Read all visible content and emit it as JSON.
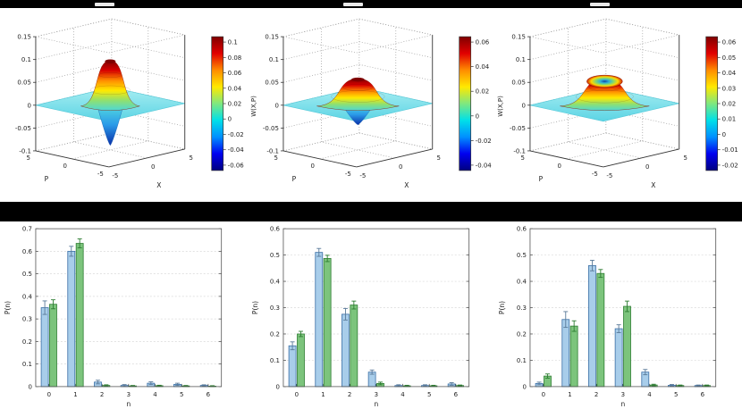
{
  "page": {
    "background": "#000000",
    "panel_background": "#ffffff"
  },
  "styles": {
    "jet_colormap": [
      "#7f0000",
      "#e10000",
      "#ff8c00",
      "#ffe900",
      "#7fe87f",
      "#00e0e8",
      "#0090ff",
      "#0000f0",
      "#00007f"
    ],
    "bell_gradient": [
      "#7f0000",
      "#d80000",
      "#ff8c00",
      "#ffe900",
      "#8fe070",
      "#4cd8d8"
    ],
    "dip_gradient": [
      "#55dce0",
      "#2a9ae8",
      "#0a2fa8"
    ],
    "crater_gradient": [
      "#1040a0",
      "#30b0d8",
      "#80d870",
      "#ffd800",
      "#cc2000"
    ],
    "plane_top": "#a8eef2",
    "plane_bottom": "#5cd4e4"
  },
  "chart_data": [
    {
      "type": "surface",
      "name": "wigner-function-1",
      "xlabel": "X",
      "ylabel": "P",
      "zlabel": "",
      "xticks": [
        "-5",
        "0",
        "5"
      ],
      "yticks": [
        "5",
        "0",
        "-5"
      ],
      "zticks": [
        "0.15",
        "0.1",
        "0.05",
        "0",
        "-0.05",
        "-0.1"
      ],
      "zlim": [
        -0.1,
        0.15
      ],
      "xlim": [
        -5,
        5
      ],
      "ylim": [
        -5,
        5
      ],
      "colorbar_ticks": [
        "0.1",
        "0.08",
        "0.06",
        "0.04",
        "0.02",
        "0",
        "-0.02",
        "-0.04",
        "-0.06"
      ],
      "peak_value": 0.1,
      "dip_value": -0.09,
      "shape": "narrow-peak-with-deep-dip"
    },
    {
      "type": "surface",
      "name": "wigner-function-2",
      "xlabel": "X",
      "ylabel": "P",
      "zlabel": "W(X,P)",
      "xticks": [
        "-5",
        "0",
        "5"
      ],
      "yticks": [
        "5",
        "0",
        "-5"
      ],
      "zticks": [
        "0.15",
        "0.1",
        "0.05",
        "0",
        "-0.05",
        "-0.1"
      ],
      "zlim": [
        -0.1,
        0.15
      ],
      "xlim": [
        -5,
        5
      ],
      "ylim": [
        -5,
        5
      ],
      "colorbar_ticks": [
        "0.06",
        "0.04",
        "0.02",
        "0",
        "-0.02",
        "-0.04"
      ],
      "peak_value": 0.06,
      "dip_value": -0.045,
      "shape": "dome-with-dip"
    },
    {
      "type": "surface",
      "name": "wigner-function-3",
      "xlabel": "X",
      "ylabel": "P",
      "zlabel": "W(X,P)",
      "xticks": [
        "-5",
        "0",
        "5"
      ],
      "yticks": [
        "5",
        "0",
        "-5"
      ],
      "zticks": [
        "0.15",
        "0.1",
        "0.05",
        "0",
        "-0.05",
        "-0.1"
      ],
      "zlim": [
        -0.1,
        0.15
      ],
      "xlim": [
        -5,
        5
      ],
      "ylim": [
        -5,
        5
      ],
      "colorbar_ticks": [
        "0.06",
        "0.05",
        "0.04",
        "0.03",
        "0.02",
        "0.01",
        "0",
        "-0.01",
        "-0.02"
      ],
      "peak_value": 0.06,
      "dip_value": -0.02,
      "shape": "crater-dome"
    },
    {
      "type": "bar",
      "name": "photon-number-distribution-1",
      "xlabel": "n",
      "ylabel": "P(n)",
      "categories": [
        "0",
        "1",
        "2",
        "3",
        "4",
        "5",
        "6"
      ],
      "ylim": [
        0,
        0.7
      ],
      "yticks": [
        "0",
        "0.1",
        "0.2",
        "0.3",
        "0.4",
        "0.5",
        "0.6",
        "0.7"
      ],
      "grid": true,
      "series": [
        {
          "name": "blue",
          "color": "#a8cdea",
          "edge": "#3a6ea5",
          "error_color": "#5a7a99",
          "values": [
            0.35,
            0.6,
            0.02,
            0.005,
            0.015,
            0.01,
            0.005
          ],
          "errors": [
            0.03,
            0.022,
            0.008,
            0.004,
            0.006,
            0.005,
            0.003
          ]
        },
        {
          "name": "green",
          "color": "#7cc47c",
          "edge": "#2e7d32",
          "error_color": "#2e7d32",
          "values": [
            0.365,
            0.635,
            0.005,
            0.003,
            0.004,
            0.003,
            0.002
          ],
          "errors": [
            0.02,
            0.02,
            0.003,
            0.002,
            0.002,
            0.002,
            0.002
          ]
        }
      ]
    },
    {
      "type": "bar",
      "name": "photon-number-distribution-2",
      "xlabel": "n",
      "ylabel": "P(n)",
      "categories": [
        "0",
        "1",
        "2",
        "3",
        "4",
        "5",
        "6"
      ],
      "ylim": [
        0,
        0.6
      ],
      "yticks": [
        "0",
        "0.1",
        "0.2",
        "0.3",
        "0.4",
        "0.5",
        "0.6"
      ],
      "grid": true,
      "series": [
        {
          "name": "blue",
          "color": "#a8cdea",
          "edge": "#3a6ea5",
          "error_color": "#5a7a99",
          "values": [
            0.155,
            0.51,
            0.275,
            0.055,
            0.004,
            0.004,
            0.01
          ],
          "errors": [
            0.015,
            0.015,
            0.022,
            0.008,
            0.003,
            0.003,
            0.005
          ]
        },
        {
          "name": "green",
          "color": "#7cc47c",
          "edge": "#2e7d32",
          "error_color": "#2e7d32",
          "values": [
            0.2,
            0.487,
            0.31,
            0.012,
            0.003,
            0.003,
            0.004
          ],
          "errors": [
            0.01,
            0.012,
            0.015,
            0.005,
            0.002,
            0.002,
            0.002
          ]
        }
      ]
    },
    {
      "type": "bar",
      "name": "photon-number-distribution-3",
      "xlabel": "n",
      "ylabel": "P(n)",
      "categories": [
        "0",
        "1",
        "2",
        "3",
        "4",
        "5",
        "6"
      ],
      "ylim": [
        0,
        0.6
      ],
      "yticks": [
        "0",
        "0.1",
        "0.2",
        "0.3",
        "0.4",
        "0.5",
        "0.6"
      ],
      "grid": true,
      "series": [
        {
          "name": "blue",
          "color": "#a8cdea",
          "edge": "#3a6ea5",
          "error_color": "#5a7a99",
          "values": [
            0.012,
            0.255,
            0.46,
            0.22,
            0.055,
            0.005,
            0.004
          ],
          "errors": [
            0.005,
            0.03,
            0.02,
            0.015,
            0.01,
            0.003,
            0.002
          ]
        },
        {
          "name": "green",
          "color": "#7cc47c",
          "edge": "#2e7d32",
          "error_color": "#2e7d32",
          "values": [
            0.04,
            0.23,
            0.43,
            0.305,
            0.006,
            0.004,
            0.004
          ],
          "errors": [
            0.008,
            0.02,
            0.015,
            0.02,
            0.003,
            0.002,
            0.002
          ]
        }
      ]
    }
  ]
}
